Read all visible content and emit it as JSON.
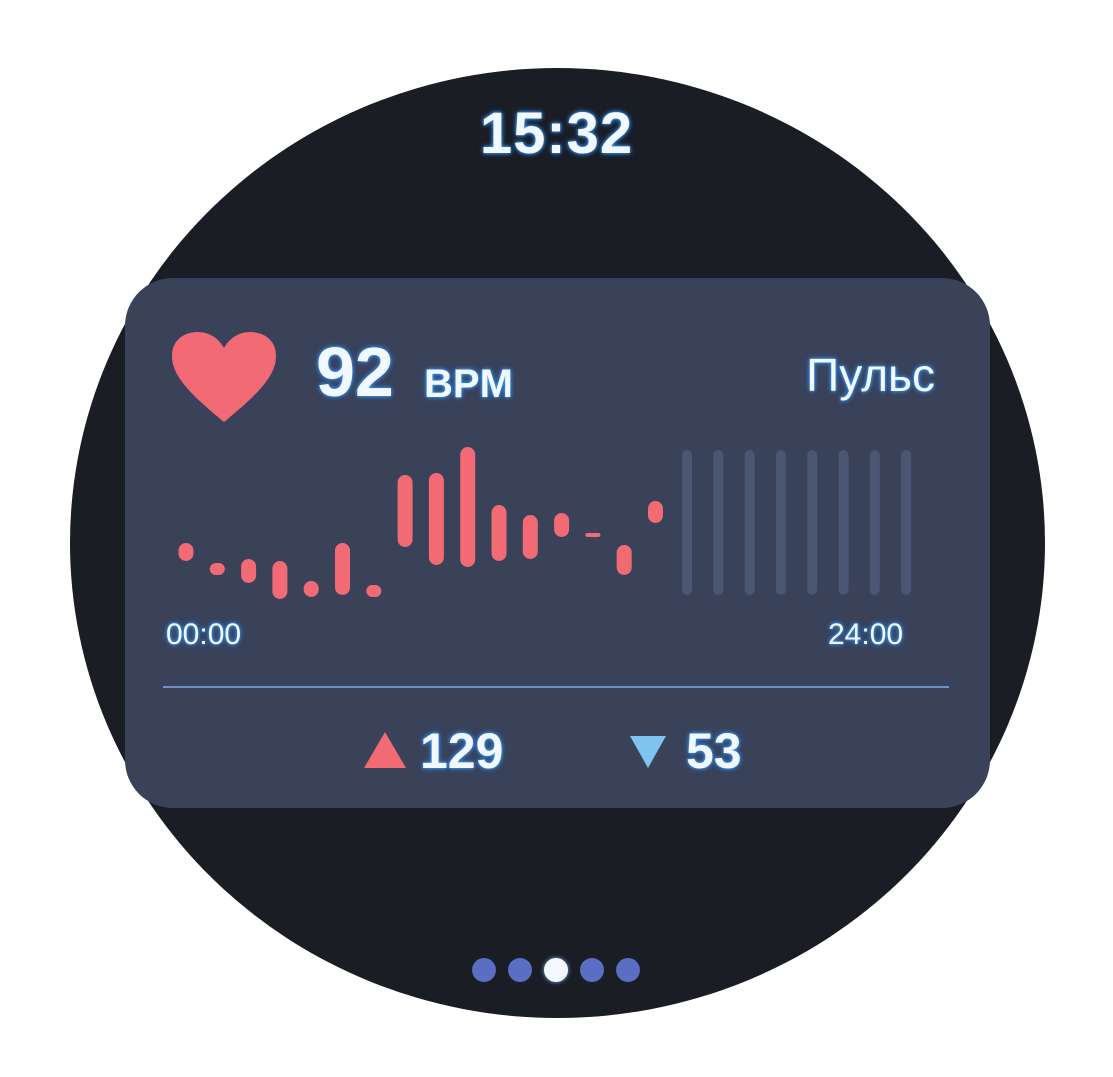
{
  "status": {
    "time": "15:32"
  },
  "widget": {
    "title": "Пульс",
    "current_value": "92",
    "unit": "BPM",
    "icon": "heart-icon",
    "max": {
      "icon": "triangle-up-icon",
      "value": "129"
    },
    "min": {
      "icon": "triangle-down-icon",
      "value": "53"
    }
  },
  "chart_data": {
    "type": "bar",
    "subtype": "range",
    "x_start_label": "00:00",
    "x_end_label": "24:00",
    "ylim": [
      53,
      129
    ],
    "grid": false,
    "bar_color": "#f26a73",
    "empty_color": "#4a5672",
    "ranges": [
      [
        72,
        81
      ],
      [
        65,
        71
      ],
      [
        61,
        73
      ],
      [
        53,
        72
      ],
      [
        54,
        62
      ],
      [
        55,
        81
      ],
      [
        54,
        60
      ],
      [
        79,
        115
      ],
      [
        70,
        116
      ],
      [
        69,
        129
      ],
      [
        72,
        100
      ],
      [
        73,
        95
      ],
      [
        84,
        96
      ],
      [
        85,
        86
      ],
      [
        65,
        80
      ],
      [
        91,
        102
      ]
    ],
    "empty_slots": 8
  },
  "pager": {
    "count": 5,
    "active_index": 2
  },
  "colors": {
    "accent_red": "#f26a73",
    "accent_blue": "#5fb4ff",
    "card": "#3a4259",
    "pager_dot": "#5a6fc4"
  }
}
